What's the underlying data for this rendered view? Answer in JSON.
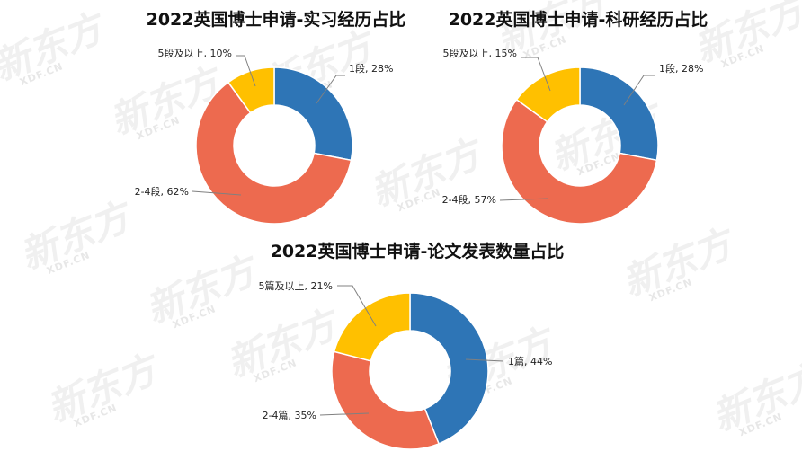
{
  "watermark": {
    "logo_text": "新东方",
    "logo_sub": "XDF.CN"
  },
  "chart_data": [
    {
      "type": "pie",
      "title": "2022英国博士申请-实习经历占比",
      "categories": [
        "1段",
        "2-4段",
        "5段及以上"
      ],
      "values": [
        28,
        62,
        10
      ],
      "labels": [
        "1段, 28%",
        "2-4段, 62%",
        "5段及以上, 10%"
      ],
      "colors": [
        "#2E75B6",
        "#ED6A4F",
        "#FFC000"
      ],
      "donut": true,
      "legend": "none"
    },
    {
      "type": "pie",
      "title": "2022英国博士申请-科研经历占比",
      "categories": [
        "1段",
        "2-4段",
        "5段及以上"
      ],
      "values": [
        28,
        57,
        15
      ],
      "labels": [
        "1段, 28%",
        "2-4段, 57%",
        "5段及以上, 15%"
      ],
      "colors": [
        "#2E75B6",
        "#ED6A4F",
        "#FFC000"
      ],
      "donut": true,
      "legend": "none"
    },
    {
      "type": "pie",
      "title": "2022英国博士申请-论文发表数量占比",
      "categories": [
        "1篇",
        "2-4篇",
        "5篇及以上"
      ],
      "values": [
        44,
        35,
        21
      ],
      "labels": [
        "1篇, 44%",
        "2-4篇, 35%",
        "5篇及以上, 21%"
      ],
      "colors": [
        "#2E75B6",
        "#ED6A4F",
        "#FFC000"
      ],
      "donut": true,
      "legend": "none"
    }
  ]
}
